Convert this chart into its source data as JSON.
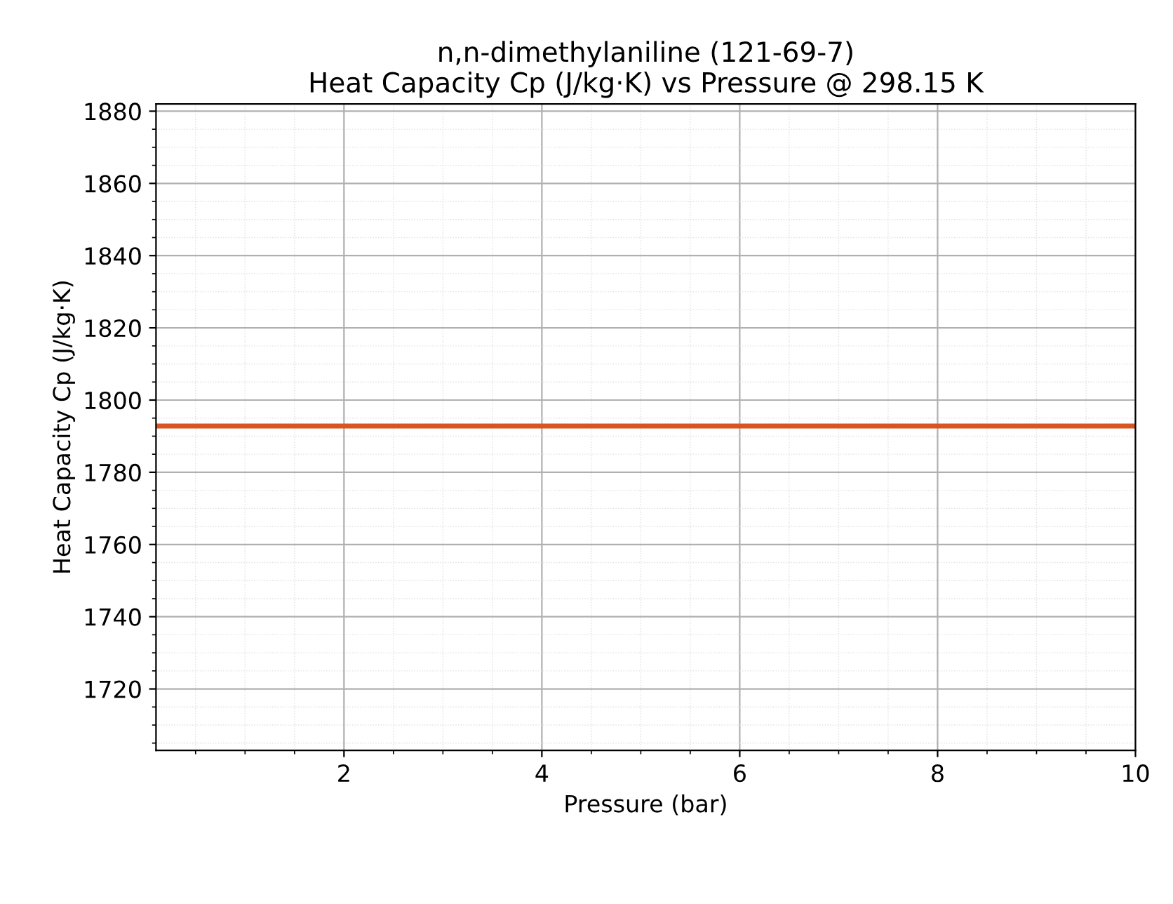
{
  "chart_data": {
    "type": "line",
    "title": "n,n-dimethylaniline (121-69-7)\nHeat Capacity Cp (J/kg·K) vs Pressure @ 298.15 K",
    "xlabel": "Pressure (bar)",
    "ylabel": "Heat Capacity Cp (J/kg·K)",
    "x": [
      0.1,
      10
    ],
    "series": [
      {
        "color": "#d9541e",
        "values": [
          1792.8,
          1792.8
        ]
      }
    ],
    "xlim": [
      0.1,
      10
    ],
    "xticks": [
      2,
      4,
      6,
      8,
      10
    ],
    "ylim": [
      1703,
      1882
    ],
    "yticks": [
      1720,
      1740,
      1760,
      1780,
      1800,
      1820,
      1840,
      1860,
      1880
    ],
    "grid": true,
    "legend": false,
    "marker": "none",
    "line_style": "solid"
  }
}
